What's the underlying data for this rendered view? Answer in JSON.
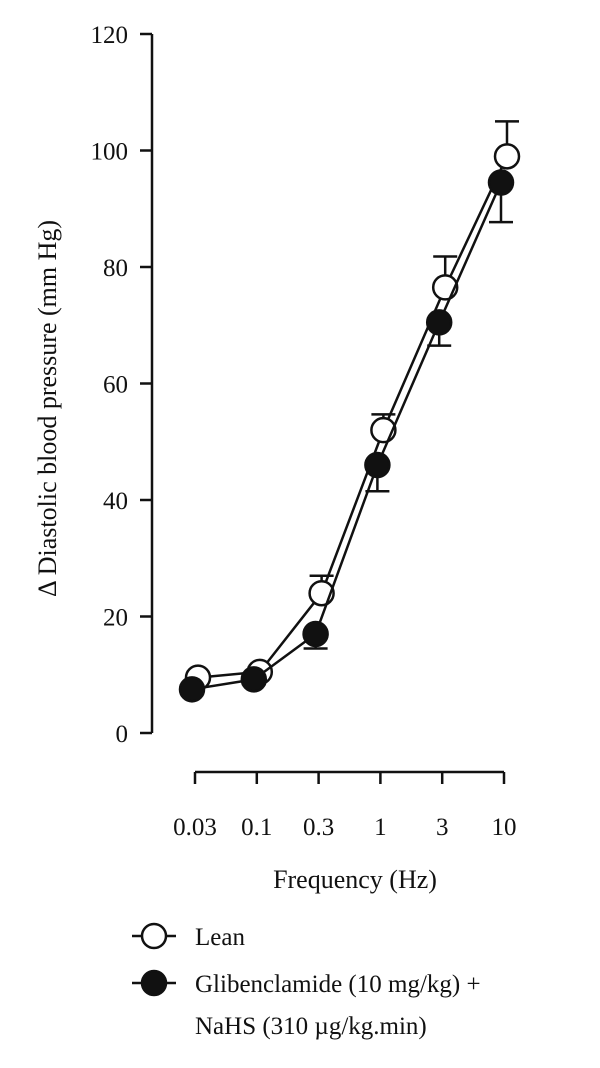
{
  "chart_data": {
    "type": "line",
    "xlabel": "Frequency (Hz)",
    "ylabel": "Δ Diastolic blood pressure (mm Hg)",
    "x_scale": "log",
    "x_ticks": [
      "0.03",
      "0.1",
      "0.3",
      "1",
      "3",
      "10"
    ],
    "ylim": [
      0,
      120
    ],
    "y_ticks": [
      "0",
      "20",
      "40",
      "60",
      "80",
      "100",
      "120"
    ],
    "grid": false,
    "legend_position": "bottom",
    "series": [
      {
        "name": "Lean",
        "marker": "open-circle",
        "values": [
          9.5,
          10.5,
          24,
          52,
          76.5,
          99
        ],
        "errors": [
          0.8,
          0.8,
          3,
          2.7,
          5.3,
          6
        ]
      },
      {
        "name": "Glibenclamide (10 mg/kg) + NaHS (310 µg/kg.min)",
        "legend_lines": [
          "Glibenclamide (10 mg/kg) +",
          "NaHS (310 µg/kg.min)"
        ],
        "marker": "filled-circle",
        "values": [
          7.5,
          9.2,
          17,
          46,
          70.5,
          94.5
        ],
        "errors": [
          0.8,
          0.8,
          2.5,
          4.5,
          4,
          6.8
        ]
      }
    ]
  },
  "colors": {
    "ink": "#111111",
    "open_fill": "#ffffff",
    "filled": "#111111"
  }
}
